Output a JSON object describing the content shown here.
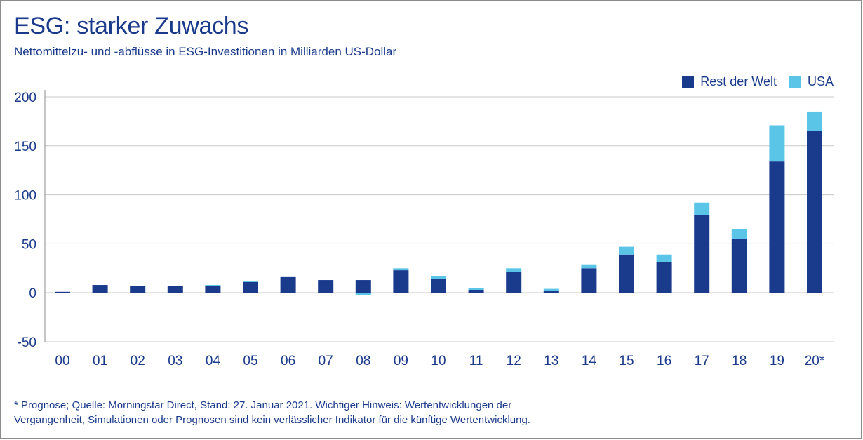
{
  "header": {
    "title": "ESG: starker Zuwachs",
    "subtitle": "Nettomittelzu- und -abflüsse in ESG-Investitionen in Milliarden US-Dollar"
  },
  "footnote": {
    "line1": "* Prognose; Quelle: Morningstar Direct, Stand: 27. Januar 2021. Wichtiger Hinweis: Wertentwicklungen der",
    "line2": "Vergangenheit, Simulationen oder Prognosen sind kein verlässlicher Indikator für die künftige Wertentwicklung."
  },
  "colors": {
    "rest_der_welt": "#1a3a8c",
    "usa": "#5bc5e8",
    "text": "#1a3a8c",
    "grid": "#c8c8c8"
  },
  "chart_data": {
    "type": "bar",
    "stacked": true,
    "title": "ESG: starker Zuwachs",
    "subtitle": "Nettomittelzu- und -abflüsse in ESG-Investitionen in Milliarden US-Dollar",
    "categories": [
      "00",
      "01",
      "02",
      "03",
      "04",
      "05",
      "06",
      "07",
      "08",
      "09",
      "10",
      "11",
      "12",
      "13",
      "14",
      "15",
      "16",
      "17",
      "18",
      "19",
      "20*"
    ],
    "series": [
      {
        "name": "Rest der Welt",
        "color": "#1a3a8c",
        "values": [
          1,
          8,
          7,
          7,
          7,
          11,
          16,
          13,
          13,
          23,
          14,
          3,
          21,
          2,
          25,
          39,
          31,
          79,
          55,
          134,
          165
        ]
      },
      {
        "name": "USA",
        "color": "#5bc5e8",
        "values": [
          0,
          0,
          0,
          0,
          1,
          1,
          0,
          0,
          -2,
          2,
          3,
          2,
          4,
          2,
          4,
          8,
          8,
          13,
          10,
          37,
          20
        ]
      }
    ],
    "yticks": [
      "200",
      "150",
      "100",
      "50",
      "0",
      "-50"
    ],
    "ylim": [
      -50,
      200
    ],
    "grid": true,
    "legend_position": "top-right"
  }
}
